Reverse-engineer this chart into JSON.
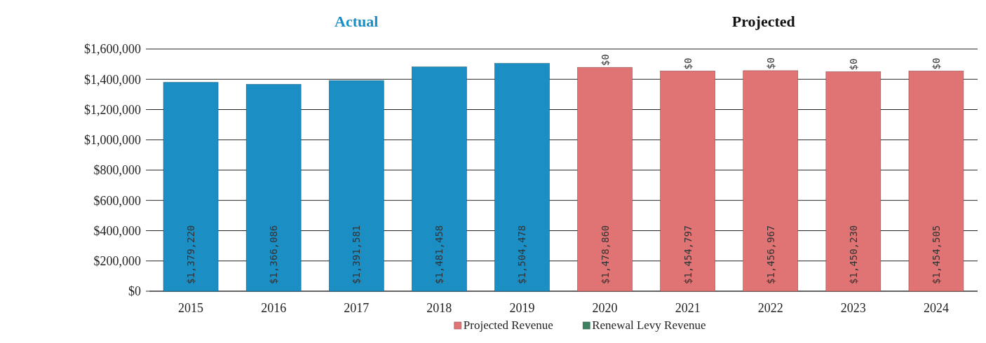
{
  "chart_data": {
    "type": "bar",
    "stacked": true,
    "categories": [
      "2015",
      "2016",
      "2017",
      "2018",
      "2019",
      "2020",
      "2021",
      "2022",
      "2023",
      "2024"
    ],
    "series": [
      {
        "color": "#1b8ec4",
        "values": [
          1379220,
          1366086,
          1391581,
          1481458,
          1504478,
          null,
          null,
          null,
          null,
          null
        ],
        "value_labels": [
          "$1,379,220",
          "$1,366,086",
          "$1,391,581",
          "$1,481,458",
          "$1,504,478",
          null,
          null,
          null,
          null,
          null
        ]
      },
      {
        "name": "Projected Revenue",
        "color": "#e07474",
        "values": [
          null,
          null,
          null,
          null,
          null,
          1478860,
          1454797,
          1456967,
          1450230,
          1454505
        ],
        "value_labels": [
          null,
          null,
          null,
          null,
          null,
          "$1,478,860",
          "$1,454,797",
          "$1,456,967",
          "$1,450,230",
          "$1,454,505"
        ]
      },
      {
        "name": "Renewal Levy Revenue",
        "color": "#3f7f62",
        "values": [
          null,
          null,
          null,
          null,
          null,
          0,
          0,
          0,
          0,
          0
        ],
        "value_labels": [
          null,
          null,
          null,
          null,
          null,
          "$0",
          "$0",
          "$0",
          "$0",
          "$0"
        ]
      }
    ],
    "ylim": [
      0,
      1600000
    ],
    "yticks": [
      {
        "value": 0,
        "label": "$0"
      },
      {
        "value": 200000,
        "label": "$200,000"
      },
      {
        "value": 400000,
        "label": "$400,000"
      },
      {
        "value": 600000,
        "label": "$600,000"
      },
      {
        "value": 800000,
        "label": "$800,000"
      },
      {
        "value": 1000000,
        "label": "$1,000,000"
      },
      {
        "value": 1200000,
        "label": "$1,200,000"
      },
      {
        "value": 1400000,
        "label": "$1,400,000"
      },
      {
        "value": 1600000,
        "label": "$1,600,000"
      }
    ],
    "grid": "y",
    "legend": "bottom",
    "annotations": [
      "Actual",
      "Projected"
    ]
  }
}
